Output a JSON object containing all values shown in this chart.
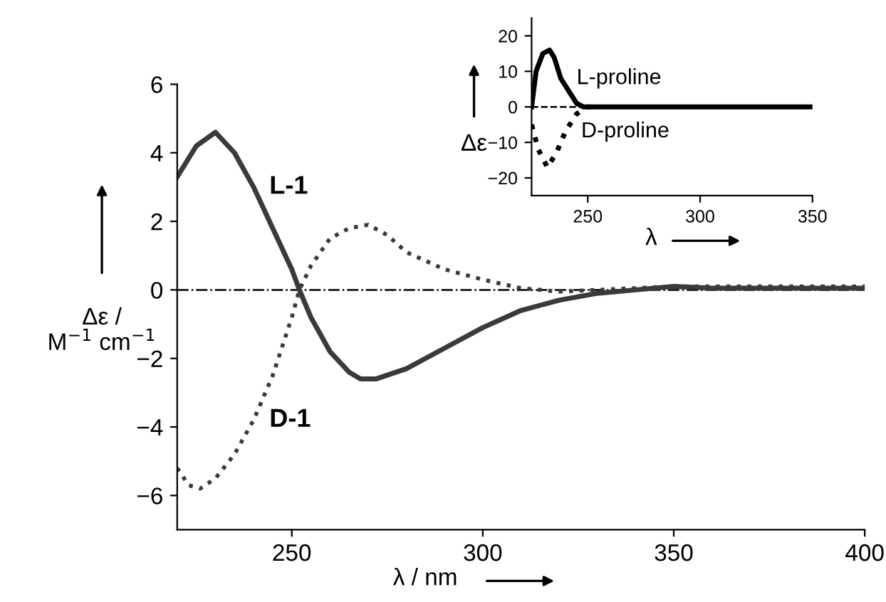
{
  "chart_data": [
    {
      "type": "line",
      "xlabel": "λ / nm",
      "ylabel": "Δε /\nM$^{−1}$ cm$^{−1}$",
      "xlim": [
        220,
        400
      ],
      "ylim": [
        -7,
        6
      ],
      "xticks": [
        250,
        300,
        350,
        400
      ],
      "yticks": [
        -6,
        -4,
        -2,
        0,
        2,
        4,
        6
      ],
      "grid": false,
      "legend": false,
      "ref_lines": [
        {
          "axis": "y",
          "value": 0,
          "line_style": "dashdot",
          "color": "#000000"
        }
      ],
      "series": [
        {
          "name": "L-1",
          "color": "#3a3a3a",
          "line_style": "solid",
          "x": [
            220,
            225,
            230,
            235,
            240,
            245,
            250,
            252,
            255,
            260,
            265,
            268,
            272,
            280,
            290,
            300,
            310,
            320,
            330,
            340,
            350,
            360,
            380,
            400
          ],
          "values": [
            3.3,
            4.2,
            4.6,
            4.0,
            3.0,
            1.8,
            0.6,
            0,
            -0.8,
            -1.8,
            -2.4,
            -2.6,
            -2.6,
            -2.3,
            -1.7,
            -1.1,
            -0.6,
            -0.3,
            -0.1,
            0.0,
            0.1,
            0.05,
            0.05,
            0.05
          ]
        },
        {
          "name": "D-1",
          "color": "#3a3a3a",
          "line_style": "dotted",
          "x": [
            220,
            223,
            226,
            230,
            235,
            240,
            245,
            250,
            252,
            255,
            260,
            265,
            270,
            275,
            280,
            290,
            300,
            310,
            320,
            330,
            340,
            350,
            400
          ],
          "values": [
            -5.2,
            -5.7,
            -5.8,
            -5.5,
            -4.8,
            -3.8,
            -2.5,
            -0.8,
            0,
            0.7,
            1.5,
            1.8,
            1.9,
            1.6,
            1.1,
            0.6,
            0.3,
            0.05,
            -0.05,
            0.0,
            0.05,
            0.1,
            0.1
          ]
        }
      ]
    },
    {
      "type": "line",
      "xlabel": "λ",
      "ylabel": "Δε",
      "xlim": [
        225,
        350
      ],
      "ylim": [
        -25,
        25
      ],
      "xticks": [
        250,
        300,
        350
      ],
      "yticks": [
        -20,
        -10,
        0,
        10,
        20
      ],
      "grid": false,
      "legend": false,
      "ref_lines": [
        {
          "axis": "y",
          "value": 0,
          "line_style": "dashed",
          "color": "#000000"
        }
      ],
      "series": [
        {
          "name": "L-proline",
          "color": "#000000",
          "line_style": "solid",
          "x": [
            225,
            227,
            230,
            233,
            235,
            238,
            242,
            245,
            248,
            350
          ],
          "values": [
            0,
            10,
            15,
            16,
            14,
            8,
            4,
            1,
            0,
            0
          ]
        },
        {
          "name": "D-proline",
          "color": "#000000",
          "line_style": "dotted",
          "x": [
            225,
            228,
            232,
            236,
            240,
            245,
            250,
            255
          ],
          "values": [
            -5,
            -12,
            -17,
            -13,
            -7,
            -2,
            0,
            0
          ]
        }
      ]
    }
  ]
}
